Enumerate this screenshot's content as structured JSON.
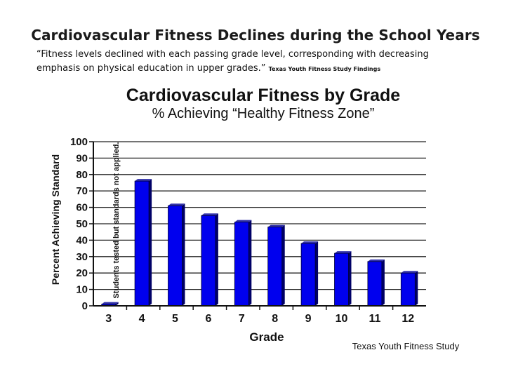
{
  "slide": {
    "title": "Cardiovascular Fitness Declines during the School Years",
    "quote_line1": "“Fitness levels declined with each passing grade level, corresponding with decreasing",
    "quote_line2": " emphasis on physical education in upper grades.”",
    "quote_source": "Texas Youth Fitness Study Findings"
  },
  "chart_data": {
    "type": "bar",
    "title": "Cardiovascular Fitness by Grade",
    "subtitle": "% Achieving “Healthy Fitness Zone”",
    "xlabel": "Grade",
    "ylabel": "Percent Achieving Standard",
    "categories": [
      "3",
      "4",
      "5",
      "6",
      "7",
      "8",
      "9",
      "10",
      "11",
      "12"
    ],
    "values": [
      1,
      76,
      61,
      55,
      51,
      48,
      38,
      32,
      27,
      20
    ],
    "ylim": [
      0,
      100
    ],
    "yticks": [
      0,
      10,
      20,
      30,
      40,
      50,
      60,
      70,
      80,
      90,
      100
    ],
    "grid": true,
    "annotation": "Students tested but standards not applied.",
    "source": "Texas Youth Fitness Study",
    "bar_color": "#0000ee",
    "bar_side_color": "#000066",
    "bar_top_color": "#3333aa"
  }
}
